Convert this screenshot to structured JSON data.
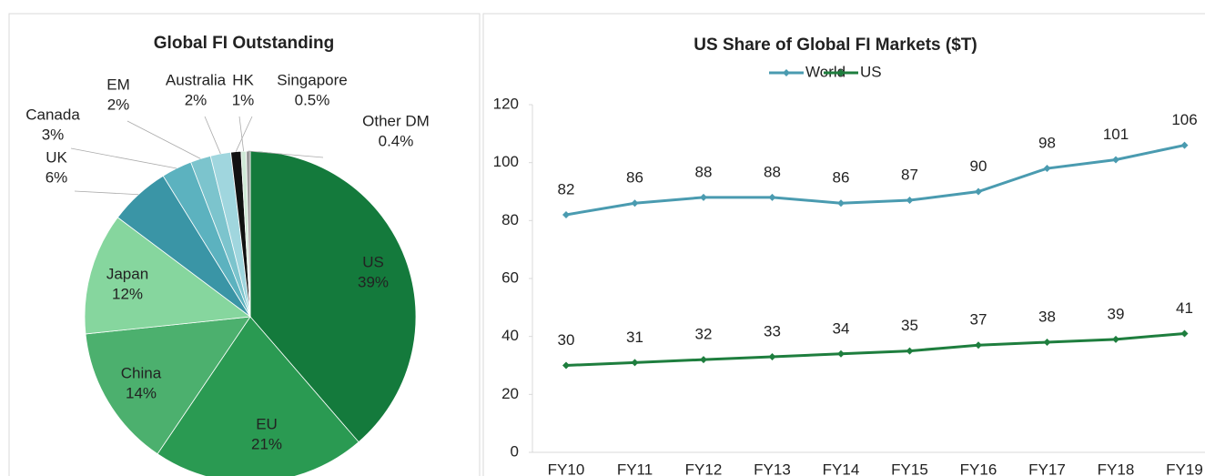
{
  "chart_data": [
    {
      "type": "pie",
      "title": "Global FI Outstanding",
      "categories": [
        "US",
        "EU",
        "China",
        "Japan",
        "UK",
        "Canada",
        "EM",
        "Australia",
        "HK",
        "Singapore",
        "Other DM"
      ],
      "values": [
        39,
        21,
        14,
        12,
        6,
        3,
        2,
        2,
        1,
        0.5,
        0.4
      ],
      "value_labels": [
        "39%",
        "21%",
        "14%",
        "12%",
        "6%",
        "3%",
        "2%",
        "2%",
        "1%",
        "0.5%",
        "0.4%"
      ],
      "colors": [
        "#147a3c",
        "#2a9a52",
        "#4cb06e",
        "#86d69e",
        "#3a95a6",
        "#5cb2bf",
        "#7cc4cd",
        "#a0d6de",
        "#111111",
        "#cfe8d6",
        "#9a9a9a"
      ]
    },
    {
      "type": "line",
      "title": "US Share of Global FI Markets ($T)",
      "categories": [
        "FY10",
        "FY11",
        "FY12",
        "FY13",
        "FY14",
        "FY15",
        "FY16",
        "FY17",
        "FY18",
        "FY19"
      ],
      "series": [
        {
          "name": "World",
          "color": "#4a9bb0",
          "values": [
            82,
            86,
            88,
            88,
            86,
            87,
            90,
            98,
            101,
            106
          ]
        },
        {
          "name": "US",
          "color": "#1e7e3e",
          "values": [
            30,
            31,
            32,
            33,
            34,
            35,
            37,
            38,
            39,
            41
          ]
        }
      ],
      "ylim": [
        0,
        120
      ],
      "yticks": [
        0,
        20,
        40,
        60,
        80,
        100,
        120
      ],
      "legend": "top"
    }
  ]
}
